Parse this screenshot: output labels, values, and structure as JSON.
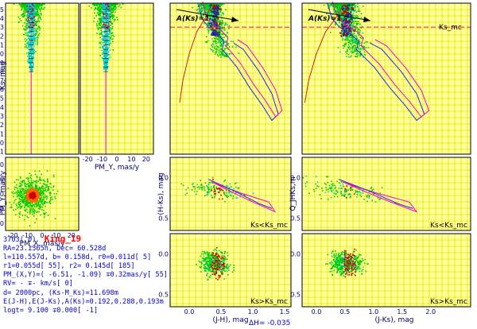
{
  "chart_data": [
    {
      "type": "scatter",
      "panel": "cmd-pmx",
      "ylabel": "Ks, mag",
      "ylim": [
        15.7,
        -1.3
      ],
      "yticks": [
        -1,
        0,
        1,
        2,
        3,
        4,
        5,
        6,
        7,
        8,
        9,
        10,
        11,
        12,
        13,
        14,
        15
      ],
      "xlim": [
        -25,
        25
      ],
      "grid": true,
      "vertical_line_x": -7.5
    },
    {
      "type": "scatter",
      "panel": "cmd-pmy",
      "xlabel": "PM_Y, mas/y",
      "xlim": [
        -25,
        25
      ],
      "xticks": [
        -20,
        -10,
        0,
        10,
        20
      ],
      "ylim": [
        15.7,
        -1.3
      ],
      "grid": true,
      "vertical_line_x": -7.5
    },
    {
      "type": "scatter",
      "panel": "vector-point-diagram",
      "xlabel": "PM_X, mas/y",
      "ylabel": "PM_Y, mas/y",
      "xlim": [
        -25,
        25
      ],
      "ylim": [
        -25,
        25
      ],
      "xticks": [
        -20,
        -10,
        0,
        10,
        20
      ],
      "yticks": [
        -20,
        -10,
        0,
        10,
        20
      ],
      "center": [
        -6.51,
        -1.09
      ],
      "grid": true
    },
    {
      "type": "line",
      "panel": "cmd-jhks",
      "ylim": [
        15.7,
        -1.3
      ],
      "xlim": [
        -0.3,
        1.6
      ],
      "annotation": "A(Ks)=1",
      "limit_line_y": 13.0,
      "limit_label": "Ks_mc",
      "grid": true
    },
    {
      "type": "line",
      "panel": "cmd-jks",
      "ylim": [
        15.7,
        -1.3
      ],
      "xlim": [
        -0.25,
        2.7
      ],
      "annotation": "A(Ks)=1",
      "limit_line_y": 13.0,
      "limit_label": "Ks_mc",
      "grid": true
    },
    {
      "type": "scatter",
      "panel": "tcd-hks-bright",
      "ylabel": "(H-Ks), mag",
      "xlim": [
        -0.3,
        1.6
      ],
      "ylim": [
        -0.25,
        0.65
      ],
      "yticks": [
        0.0,
        0.5
      ],
      "label": "Ks<Ks_mc",
      "grid": true
    },
    {
      "type": "scatter",
      "panel": "tcd-q-bright",
      "ylabel": "Q_JHKs,m",
      "xlim": [
        -0.25,
        2.7
      ],
      "ylim": [
        -0.25,
        0.65
      ],
      "yticks": [
        0.0,
        0.5
      ],
      "label": "Ks<Ks_mc",
      "grid": true
    },
    {
      "type": "scatter",
      "panel": "tcd-hks-faint",
      "xlabel": "(J-H), mag",
      "xlim": [
        -0.3,
        1.6
      ],
      "ylim": [
        -0.25,
        0.65
      ],
      "xticks": [
        0.0,
        0.5,
        1.0,
        1.5
      ],
      "yticks": [
        0.0,
        0.5
      ],
      "label": "Ks>Ks_mc",
      "grid": true
    },
    {
      "type": "scatter",
      "panel": "tcd-q-faint",
      "xlabel": "(J-Ks), mag",
      "xlim": [
        -0.25,
        2.7
      ],
      "ylim": [
        -0.25,
        0.65
      ],
      "xticks": [
        0.0,
        0.5,
        1.0,
        1.5,
        2.0
      ],
      "yticks": [
        0.0,
        0.5
      ],
      "label": "Ks>Ks_mc",
      "grid": true
    }
  ],
  "info": {
    "id": "3703( 0)",
    "name": "King_19",
    "lines": [
      "RA=23.1365h, Dec= 60.528d",
      "l=110.557d, b= 0.158d, r0=0.011d[ 5]",
      "r1=0.055d[ 55], r2= 0.145d[ 185]",
      "PM_(X,Y)=( -6.51, -1.09) ∓0.32mas/y[ 55]",
      "RV= - ∓- km/s[ 0]",
      "d= 2000pc, (Ks-M_Ks)=11.698m",
      "E(J-H),E(J-Ks),A(Ks)=0.192,0.288,0.193m",
      "logt= 9.100 ∓0.000[ -1]"
    ]
  },
  "bottom_note": "ΔH= -0.035",
  "colors": {
    "background": "#ffff99",
    "grid": "#e5e500",
    "field": "#00cc00",
    "members": "#00cccc",
    "core": "#cc0000",
    "isochrone_blue": "#2222ff",
    "isochrone_magenta": "#ff00cc",
    "track_red": "#cc2222",
    "axis_text": "#000066",
    "info_text": "#0000cc"
  }
}
